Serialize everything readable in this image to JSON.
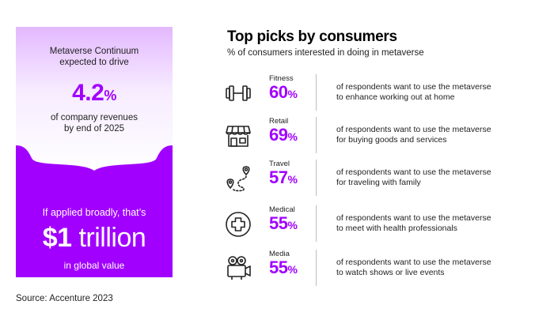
{
  "left_panel": {
    "line1": "Metaverse Continuum",
    "line2": "expected to drive",
    "big_number": "4.2",
    "big_unit": "%",
    "line3": "of company revenues",
    "line4": "by end of 2025",
    "bottom_line1": "If applied broadly, that’s",
    "bottom_amount": "$1",
    "bottom_amount_word": "trillion",
    "bottom_line2": "in global value",
    "colors": {
      "accent": "#a100ff",
      "fade_top": "#e9c9ff"
    }
  },
  "main": {
    "title": "Top picks by consumers",
    "subtitle": "% of consumers interested in doing in metaverse",
    "rows": [
      {
        "icon": "dumbbell-icon",
        "category": "Fitness",
        "value": "60",
        "unit": "%",
        "desc1": "of respondents want to use the metaverse",
        "desc2": "to enhance working out at home"
      },
      {
        "icon": "storefront-icon",
        "category": "Retail",
        "value": "69",
        "unit": "%",
        "desc1": "of respondents want to use the metaverse",
        "desc2": "for buying goods and services"
      },
      {
        "icon": "travel-route-icon",
        "category": "Travel",
        "value": "57",
        "unit": "%",
        "desc1": "of respondents want to use the metaverse",
        "desc2": "for traveling with family"
      },
      {
        "icon": "medical-cross-icon",
        "category": "Medical",
        "value": "55",
        "unit": "%",
        "desc1": "of respondents want to use the metaverse",
        "desc2": "to meet with health professionals"
      },
      {
        "icon": "video-camera-icon",
        "category": "Media",
        "value": "55",
        "unit": "%",
        "desc1": "of respondents want to use the metaverse",
        "desc2": "to watch shows or live events"
      }
    ]
  },
  "source": "Source: Accenture 2023"
}
